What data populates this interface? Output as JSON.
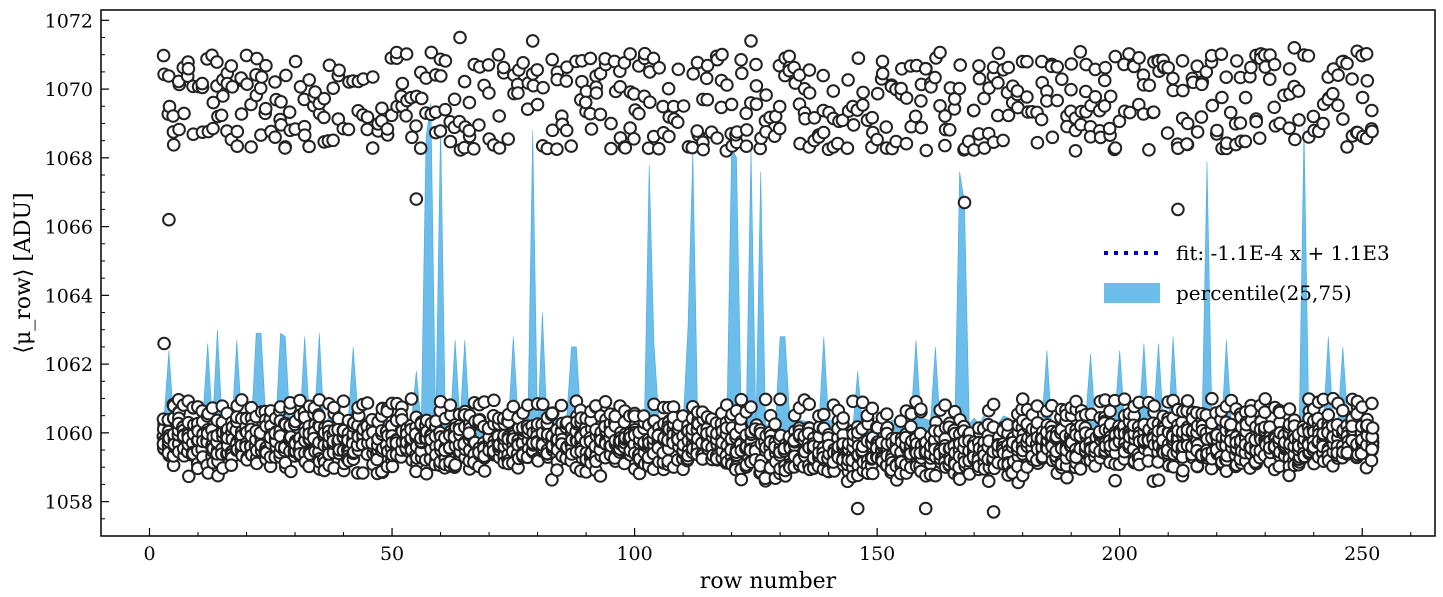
{
  "chart_data": {
    "type": "scatter",
    "xlabel": "row number",
    "ylabel": "⟨μ_row⟩ [ADU]",
    "xlim": [
      -10,
      265
    ],
    "ylim": [
      1057.0,
      1072.3
    ],
    "x_ticks": [
      0,
      50,
      100,
      150,
      200,
      250
    ],
    "y_ticks": [
      1058,
      1060,
      1062,
      1064,
      1066,
      1068,
      1070,
      1072
    ],
    "x_tick_labels": [
      "0",
      "50",
      "100",
      "150",
      "200",
      "250"
    ],
    "y_tick_labels": [
      "1058",
      "1060",
      "1062",
      "1064",
      "1066",
      "1068",
      "1070",
      "1072"
    ],
    "legend": {
      "position": "center-right",
      "entries": [
        "fit: -1.1E-4 x + 1.1E3",
        "percentile(25,75)"
      ]
    },
    "series": [
      {
        "name": "fit: -1.1E-4 x + 1.1E3",
        "kind": "line",
        "slope": -0.00011,
        "intercept": 1059.78,
        "x_range": [
          3,
          252
        ],
        "color": "#0000cc"
      },
      {
        "name": "percentile(25,75)",
        "kind": "band",
        "color": "#1f9ae0",
        "baseline": [
          1059.7,
          1060.3
        ],
        "spikes": [
          {
            "x": 4,
            "top": 1062.4
          },
          {
            "x": 12,
            "top": 1062.6
          },
          {
            "x": 14,
            "top": 1063.0
          },
          {
            "x": 18,
            "top": 1062.7
          },
          {
            "x": 22,
            "top": 1062.9
          },
          {
            "x": 23,
            "top": 1062.9
          },
          {
            "x": 27,
            "top": 1062.9
          },
          {
            "x": 28,
            "top": 1062.8
          },
          {
            "x": 32,
            "top": 1062.8
          },
          {
            "x": 35,
            "top": 1062.9
          },
          {
            "x": 42,
            "top": 1062.5
          },
          {
            "x": 55,
            "top": 1061.8
          },
          {
            "x": 57,
            "top": 1068.6
          },
          {
            "x": 58,
            "top": 1069.6
          },
          {
            "x": 60,
            "top": 1069.0
          },
          {
            "x": 63,
            "top": 1062.7
          },
          {
            "x": 65,
            "top": 1062.7
          },
          {
            "x": 75,
            "top": 1062.8
          },
          {
            "x": 79,
            "top": 1068.8
          },
          {
            "x": 81,
            "top": 1063.5
          },
          {
            "x": 87,
            "top": 1062.5
          },
          {
            "x": 88,
            "top": 1062.5
          },
          {
            "x": 103,
            "top": 1067.8
          },
          {
            "x": 104,
            "top": 1062.6
          },
          {
            "x": 111,
            "top": 1063.1
          },
          {
            "x": 112,
            "top": 1068.2
          },
          {
            "x": 120,
            "top": 1068.3
          },
          {
            "x": 121,
            "top": 1068.0
          },
          {
            "x": 124,
            "top": 1068.3
          },
          {
            "x": 126,
            "top": 1067.6
          },
          {
            "x": 130,
            "top": 1062.8
          },
          {
            "x": 131,
            "top": 1062.8
          },
          {
            "x": 139,
            "top": 1062.8
          },
          {
            "x": 146,
            "top": 1061.8
          },
          {
            "x": 158,
            "top": 1062.7
          },
          {
            "x": 162,
            "top": 1062.5
          },
          {
            "x": 167,
            "top": 1067.6
          },
          {
            "x": 168,
            "top": 1066.7
          },
          {
            "x": 185,
            "top": 1062.4
          },
          {
            "x": 194,
            "top": 1062.3
          },
          {
            "x": 200,
            "top": 1062.4
          },
          {
            "x": 205,
            "top": 1062.6
          },
          {
            "x": 208,
            "top": 1062.6
          },
          {
            "x": 211,
            "top": 1062.8
          },
          {
            "x": 218,
            "top": 1067.9
          },
          {
            "x": 222,
            "top": 1062.7
          },
          {
            "x": 238,
            "top": 1068.9
          },
          {
            "x": 243,
            "top": 1062.8
          },
          {
            "x": 246,
            "top": 1062.5
          }
        ]
      },
      {
        "name": "",
        "kind": "scatter",
        "description": "per-row column means; ~14 points per row, dense cluster 1058–1061 with an upper branch near 1068–1071",
        "core_band": [
          1058.5,
          1061.0
        ],
        "upper_branch": [
          1067.5,
          1071.3
        ],
        "outlier_points": [
          {
            "x": 3,
            "y": 1062.6
          },
          {
            "x": 4,
            "y": 1066.2
          },
          {
            "x": 55,
            "y": 1066.8
          },
          {
            "x": 168,
            "y": 1066.7
          },
          {
            "x": 146,
            "y": 1057.8
          },
          {
            "x": 160,
            "y": 1057.8
          },
          {
            "x": 174,
            "y": 1057.7
          },
          {
            "x": 64,
            "y": 1071.5
          },
          {
            "x": 124,
            "y": 1071.4
          },
          {
            "x": 79,
            "y": 1071.4
          },
          {
            "x": 236,
            "y": 1071.2
          },
          {
            "x": 212,
            "y": 1066.5
          }
        ]
      }
    ]
  }
}
